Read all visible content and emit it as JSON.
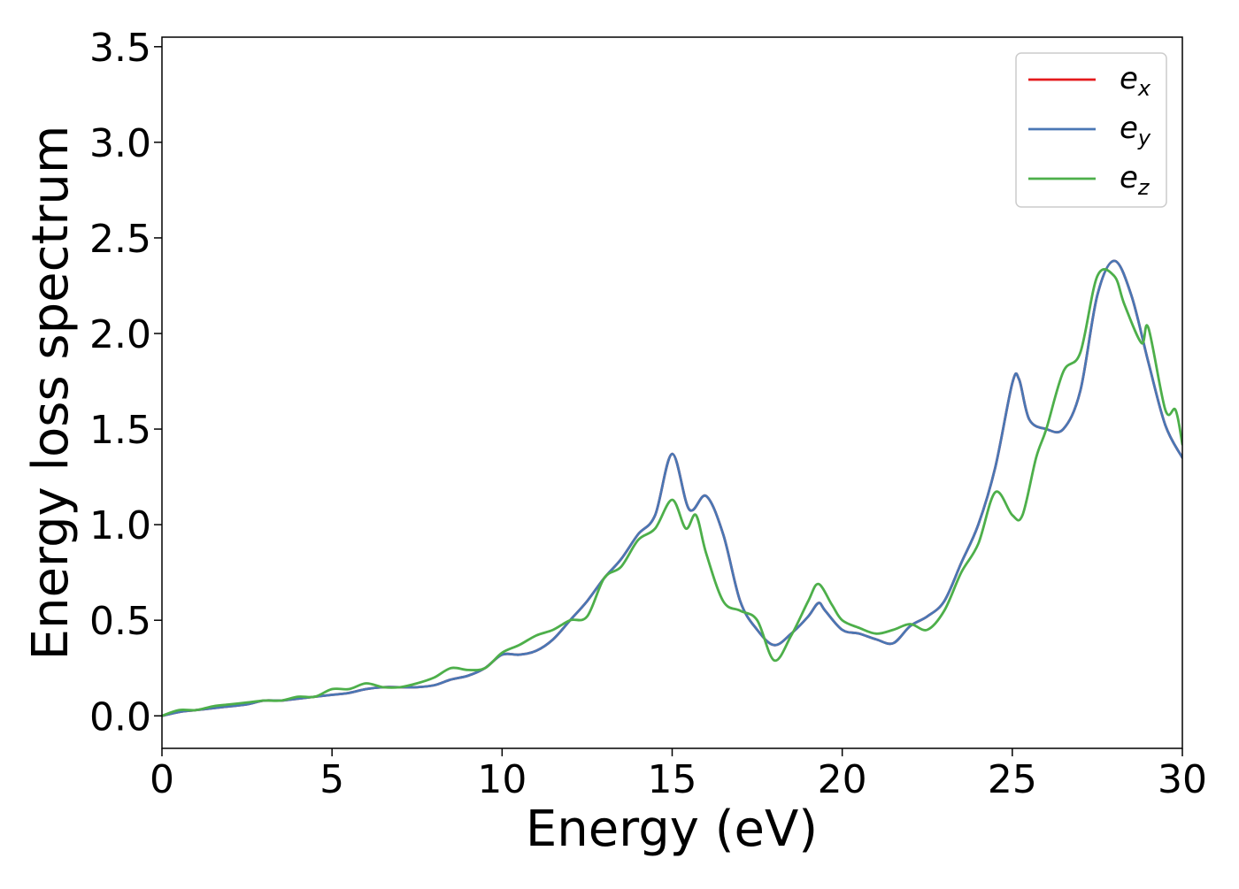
{
  "chart_data": {
    "type": "line",
    "xlabel": "Energy (eV)",
    "ylabel": "Energy loss spectrum",
    "xlim": [
      0,
      30
    ],
    "ylim": [
      -0.17,
      3.55
    ],
    "xticks": [
      0,
      5,
      10,
      15,
      20,
      25,
      30
    ],
    "xtick_labels": [
      "0",
      "5",
      "10",
      "15",
      "20",
      "25",
      "30"
    ],
    "yticks": [
      0.0,
      0.5,
      1.0,
      1.5,
      2.0,
      2.5,
      3.0,
      3.5
    ],
    "ytick_labels": [
      "0.0",
      "0.5",
      "1.0",
      "1.5",
      "2.0",
      "2.5",
      "3.0",
      "3.5"
    ],
    "grid": false,
    "legend_position": "top-right",
    "series": [
      {
        "name": "e",
        "subscript": "x",
        "color": "#e41a1c",
        "x": [
          0,
          0.5,
          1,
          1.5,
          2,
          2.5,
          3,
          3.5,
          4,
          4.5,
          5,
          5.5,
          6,
          6.5,
          7,
          7.5,
          8,
          8.5,
          9,
          9.5,
          10,
          10.5,
          11,
          11.5,
          12,
          12.5,
          13,
          13.5,
          14,
          14.5,
          15,
          15.5,
          16,
          16.5,
          17,
          17.5,
          18,
          18.5,
          19,
          19.3,
          19.5,
          20,
          20.5,
          21,
          21.5,
          22,
          22.5,
          23,
          23.5,
          24,
          24.5,
          25,
          25.2,
          25.5,
          26,
          26.5,
          27,
          27.5,
          28,
          28.5,
          29,
          29.5,
          30
        ],
        "y": [
          0,
          0.02,
          0.03,
          0.04,
          0.05,
          0.06,
          0.08,
          0.08,
          0.09,
          0.1,
          0.11,
          0.12,
          0.14,
          0.15,
          0.15,
          0.15,
          0.16,
          0.19,
          0.21,
          0.25,
          0.32,
          0.32,
          0.34,
          0.4,
          0.5,
          0.6,
          0.72,
          0.82,
          0.95,
          1.05,
          1.37,
          1.08,
          1.15,
          0.95,
          0.6,
          0.45,
          0.37,
          0.43,
          0.52,
          0.59,
          0.55,
          0.45,
          0.43,
          0.4,
          0.38,
          0.47,
          0.52,
          0.6,
          0.8,
          1.0,
          1.3,
          1.74,
          1.76,
          1.55,
          1.5,
          1.5,
          1.7,
          2.2,
          2.38,
          2.2,
          1.85,
          1.52,
          1.35
        ]
      },
      {
        "name": "e",
        "subscript": "y",
        "color": "#4a77b4",
        "x": [
          0,
          0.5,
          1,
          1.5,
          2,
          2.5,
          3,
          3.5,
          4,
          4.5,
          5,
          5.5,
          6,
          6.5,
          7,
          7.5,
          8,
          8.5,
          9,
          9.5,
          10,
          10.5,
          11,
          11.5,
          12,
          12.5,
          13,
          13.5,
          14,
          14.5,
          15,
          15.5,
          16,
          16.5,
          17,
          17.5,
          18,
          18.5,
          19,
          19.3,
          19.5,
          20,
          20.5,
          21,
          21.5,
          22,
          22.5,
          23,
          23.5,
          24,
          24.5,
          25,
          25.2,
          25.5,
          26,
          26.5,
          27,
          27.5,
          28,
          28.5,
          29,
          29.5,
          30
        ],
        "y": [
          0,
          0.02,
          0.03,
          0.04,
          0.05,
          0.06,
          0.08,
          0.08,
          0.09,
          0.1,
          0.11,
          0.12,
          0.14,
          0.15,
          0.15,
          0.15,
          0.16,
          0.19,
          0.21,
          0.25,
          0.32,
          0.32,
          0.34,
          0.4,
          0.5,
          0.6,
          0.72,
          0.82,
          0.95,
          1.05,
          1.37,
          1.08,
          1.15,
          0.95,
          0.6,
          0.45,
          0.37,
          0.43,
          0.52,
          0.59,
          0.55,
          0.45,
          0.43,
          0.4,
          0.38,
          0.47,
          0.52,
          0.6,
          0.8,
          1.0,
          1.3,
          1.74,
          1.76,
          1.55,
          1.5,
          1.5,
          1.7,
          2.2,
          2.38,
          2.2,
          1.85,
          1.52,
          1.35
        ]
      },
      {
        "name": "e",
        "subscript": "z",
        "color": "#4daf4a",
        "x": [
          0,
          0.5,
          1,
          1.5,
          2,
          2.5,
          3,
          3.5,
          4,
          4.5,
          5,
          5.5,
          6,
          6.5,
          7,
          7.5,
          8,
          8.5,
          9,
          9.5,
          10,
          10.5,
          11,
          11.5,
          12,
          12.5,
          13,
          13.5,
          14,
          14.5,
          15,
          15.4,
          15.7,
          16,
          16.5,
          17,
          17.5,
          18,
          18.5,
          19,
          19.3,
          19.7,
          20,
          20.5,
          21,
          21.5,
          22,
          22.5,
          23,
          23.5,
          24,
          24.5,
          25,
          25.3,
          25.7,
          26,
          26.5,
          27,
          27.5,
          28,
          28.3,
          28.8,
          29,
          29.5,
          29.8,
          30
        ],
        "y": [
          0,
          0.03,
          0.03,
          0.05,
          0.06,
          0.07,
          0.08,
          0.08,
          0.1,
          0.1,
          0.14,
          0.14,
          0.17,
          0.15,
          0.15,
          0.17,
          0.2,
          0.25,
          0.24,
          0.25,
          0.33,
          0.37,
          0.42,
          0.45,
          0.5,
          0.52,
          0.72,
          0.78,
          0.92,
          0.98,
          1.13,
          0.98,
          1.05,
          0.85,
          0.6,
          0.55,
          0.5,
          0.29,
          0.42,
          0.6,
          0.69,
          0.58,
          0.5,
          0.46,
          0.43,
          0.45,
          0.48,
          0.45,
          0.55,
          0.75,
          0.9,
          1.17,
          1.05,
          1.05,
          1.35,
          1.5,
          1.8,
          1.9,
          2.3,
          2.3,
          2.15,
          1.95,
          2.03,
          1.6,
          1.6,
          1.42
        ]
      }
    ]
  }
}
